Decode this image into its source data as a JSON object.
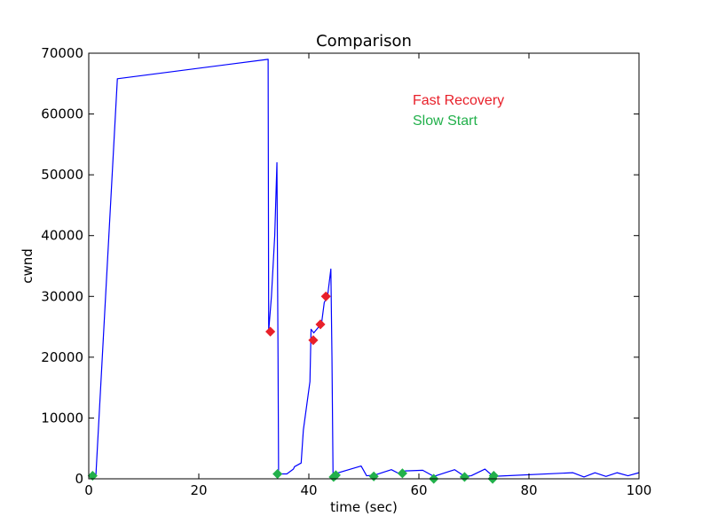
{
  "chart_data": {
    "type": "line",
    "title": "Comparison",
    "xlabel": "time (sec)",
    "ylabel": "cwnd",
    "xlim": [
      0,
      100
    ],
    "ylim": [
      0,
      70000
    ],
    "xticks": [
      0,
      20,
      40,
      60,
      80,
      100
    ],
    "yticks": [
      0,
      10000,
      20000,
      30000,
      40000,
      50000,
      60000,
      70000
    ],
    "grid": false,
    "colors": {
      "line": "#0000ff",
      "fast_recovery": "#e8202a",
      "slow_start": "#22b04b"
    },
    "annotations": [
      {
        "text": "Fast Recovery",
        "color": "#e8202a"
      },
      {
        "text": "Slow Start",
        "color": "#22b04b"
      }
    ],
    "series": [
      {
        "x": [
          0.6,
          0.9,
          1.3,
          5.2,
          32.6,
          32.7,
          33.2,
          33.8,
          34.2,
          34.4,
          34.5,
          36.0,
          37.2,
          37.4,
          38.6,
          39.0,
          40.2,
          40.4,
          40.9,
          41.8,
          42.3,
          42.8,
          43.4,
          43.8,
          44.0,
          44.2,
          44.4,
          44.6,
          45.0,
          49.5,
          50.5,
          51.9,
          55.0,
          56.5,
          57.5,
          60.7,
          62.7,
          66.5,
          68.3,
          69.5,
          72.0,
          73.5,
          88.0,
          90.0,
          92.0,
          94.0,
          96.0,
          98.0,
          100.0
        ],
        "y": [
          500,
          900,
          600,
          65800,
          69000,
          24300,
          30000,
          40000,
          52000,
          20000,
          800,
          800,
          1600,
          2000,
          2600,
          8000,
          16000,
          24600,
          24000,
          25000,
          25500,
          29000,
          30000,
          33000,
          34500,
          20000,
          300,
          700,
          900,
          2100,
          500,
          600,
          1500,
          800,
          1300,
          1400,
          400,
          1500,
          400,
          500,
          1600,
          400,
          1000,
          300,
          1000,
          400,
          1000,
          500,
          1000
        ]
      }
    ],
    "markers": {
      "fast_recovery": [
        {
          "x": 33.0,
          "y": 24200
        },
        {
          "x": 40.8,
          "y": 22800
        },
        {
          "x": 42.1,
          "y": 25400
        },
        {
          "x": 43.1,
          "y": 30000
        }
      ],
      "slow_start": [
        {
          "x": 0.7,
          "y": 500
        },
        {
          "x": 34.3,
          "y": 800
        },
        {
          "x": 44.5,
          "y": 300
        },
        {
          "x": 44.9,
          "y": 600
        },
        {
          "x": 51.8,
          "y": 400
        },
        {
          "x": 57.0,
          "y": 900
        },
        {
          "x": 62.7,
          "y": 0
        },
        {
          "x": 68.3,
          "y": 300
        },
        {
          "x": 73.4,
          "y": 0
        },
        {
          "x": 73.6,
          "y": 500
        }
      ]
    }
  }
}
